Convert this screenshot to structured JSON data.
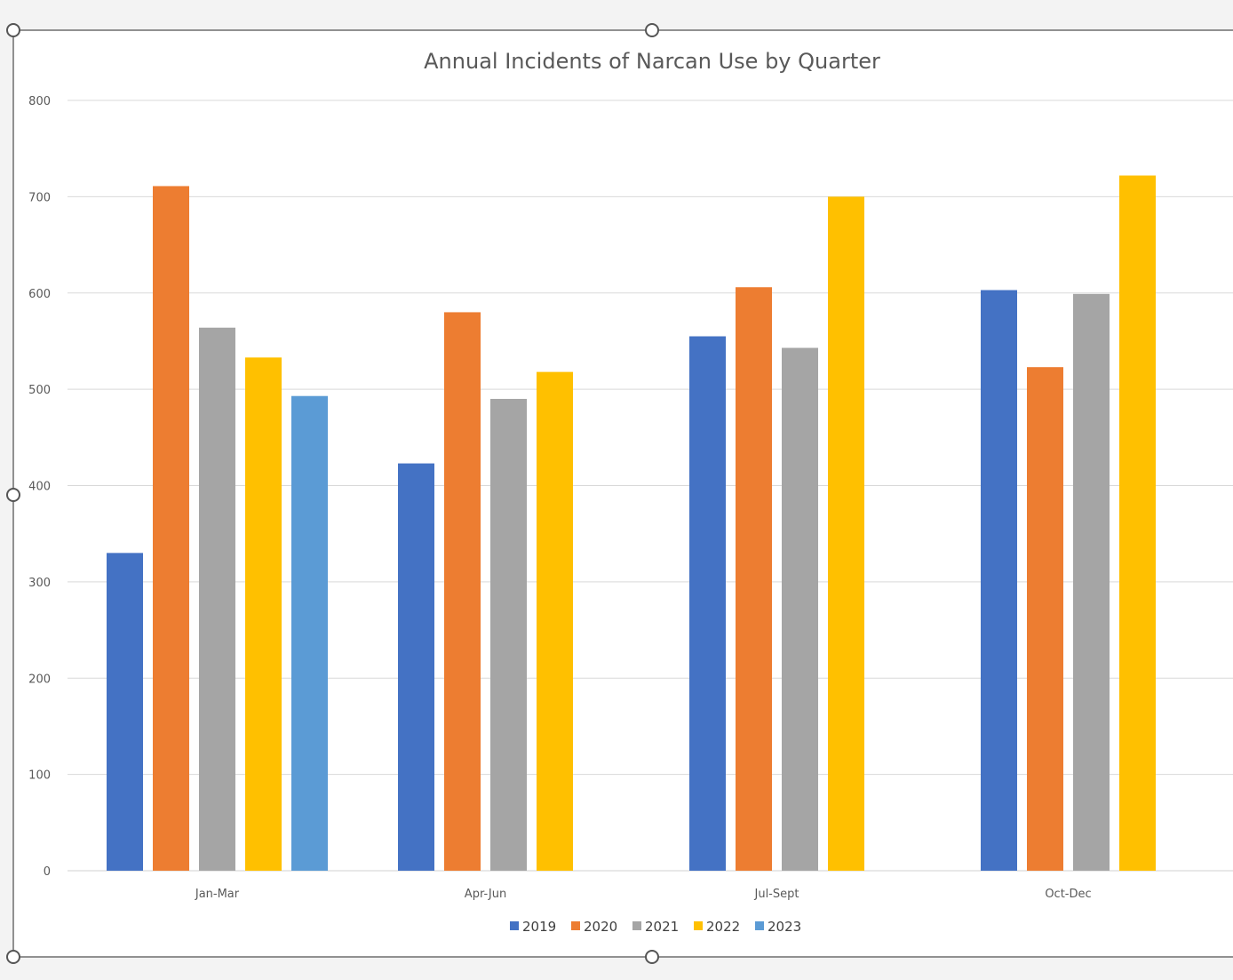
{
  "chart_data": {
    "type": "bar",
    "title": "Annual Incidents of Narcan Use by Quarter",
    "xlabel": "",
    "ylabel": "",
    "categories": [
      "Jan-Mar",
      "Apr-Jun",
      "Jul-Sept",
      "Oct-Dec"
    ],
    "ylim": [
      0,
      800
    ],
    "yticks": [
      0,
      100,
      200,
      300,
      400,
      500,
      600,
      700,
      800
    ],
    "grid": true,
    "legend_position": "bottom",
    "series": [
      {
        "name": "2019",
        "color": "#4472C4",
        "values": [
          330,
          423,
          555,
          603
        ]
      },
      {
        "name": "2020",
        "color": "#ED7D31",
        "values": [
          711,
          580,
          606,
          523
        ]
      },
      {
        "name": "2021",
        "color": "#A5A5A5",
        "values": [
          564,
          490,
          543,
          599
        ]
      },
      {
        "name": "2022",
        "color": "#FFC000",
        "values": [
          533,
          518,
          700,
          722
        ]
      },
      {
        "name": "2023",
        "color": "#5B9BD5",
        "values": [
          493,
          null,
          null,
          null
        ]
      }
    ]
  }
}
